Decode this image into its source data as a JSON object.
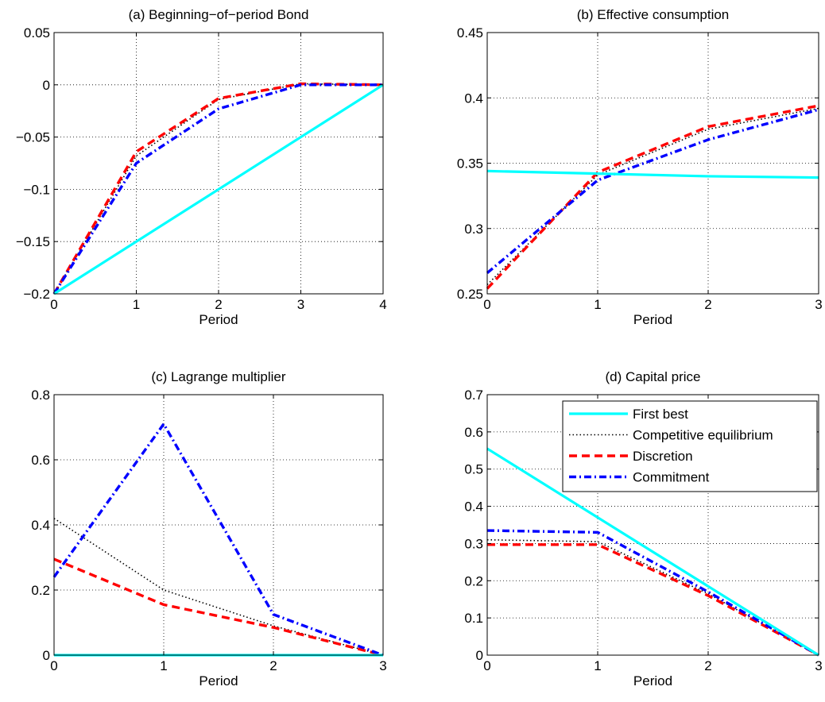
{
  "chart_data": [
    {
      "type": "line",
      "title": "(a) Beginning−of−period Bond",
      "xlabel": "Period",
      "ylabel": "",
      "xlim": [
        0,
        4
      ],
      "ylim": [
        -0.2,
        0.05
      ],
      "xticks": [
        "0",
        "1",
        "2",
        "3",
        "4"
      ],
      "yticks": [
        "−0.2",
        "−0.15",
        "−0.1",
        "−0.05",
        "0",
        "0.05"
      ],
      "xtick_values": [
        0,
        1,
        2,
        3,
        4
      ],
      "ytick_values": [
        -0.2,
        -0.15,
        -0.1,
        -0.05,
        0,
        0.05
      ],
      "grid": true,
      "series": [
        {
          "name": "First best",
          "x": [
            0,
            4
          ],
          "values": [
            -0.2,
            0.0
          ]
        },
        {
          "name": "Competitive equilibrium",
          "x": [
            0,
            1,
            2,
            3,
            4
          ],
          "values": [
            -0.2,
            -0.068,
            -0.014,
            0.001,
            0.0
          ]
        },
        {
          "name": "Discretion",
          "x": [
            0,
            1,
            2,
            3,
            4
          ],
          "values": [
            -0.2,
            -0.064,
            -0.013,
            0.001,
            0.0
          ]
        },
        {
          "name": "Commitment",
          "x": [
            0,
            1,
            2,
            3,
            4
          ],
          "values": [
            -0.2,
            -0.075,
            -0.023,
            0.0,
            0.0
          ]
        }
      ]
    },
    {
      "type": "line",
      "title": "(b) Effective consumption",
      "xlabel": "Period",
      "ylabel": "",
      "xlim": [
        0,
        3
      ],
      "ylim": [
        0.25,
        0.45
      ],
      "xticks": [
        "0",
        "1",
        "2",
        "3"
      ],
      "yticks": [
        "0.25",
        "0.3",
        "0.35",
        "0.4",
        "0.45"
      ],
      "xtick_values": [
        0,
        1,
        2,
        3
      ],
      "ytick_values": [
        0.25,
        0.3,
        0.35,
        0.4,
        0.45
      ],
      "grid": true,
      "series": [
        {
          "name": "First best",
          "x": [
            0,
            1,
            2,
            3
          ],
          "values": [
            0.344,
            0.342,
            0.34,
            0.339
          ]
        },
        {
          "name": "Competitive equilibrium",
          "x": [
            0,
            1,
            2,
            3
          ],
          "values": [
            0.257,
            0.341,
            0.376,
            0.392
          ]
        },
        {
          "name": "Discretion",
          "x": [
            0,
            1,
            2,
            3
          ],
          "values": [
            0.254,
            0.343,
            0.378,
            0.394
          ]
        },
        {
          "name": "Commitment",
          "x": [
            0,
            1,
            2,
            3
          ],
          "values": [
            0.266,
            0.337,
            0.368,
            0.391
          ]
        }
      ]
    },
    {
      "type": "line",
      "title": "(c) Lagrange multiplier",
      "xlabel": "Period",
      "ylabel": "",
      "xlim": [
        0,
        3
      ],
      "ylim": [
        0,
        0.8
      ],
      "xticks": [
        "0",
        "1",
        "2",
        "3"
      ],
      "yticks": [
        "0",
        "0.2",
        "0.4",
        "0.6",
        "0.8"
      ],
      "xtick_values": [
        0,
        1,
        2,
        3
      ],
      "ytick_values": [
        0,
        0.2,
        0.4,
        0.6,
        0.8
      ],
      "grid": true,
      "series": [
        {
          "name": "First best",
          "x": [
            0,
            1,
            2,
            3
          ],
          "values": [
            0.0,
            0.0,
            0.0,
            0.0
          ]
        },
        {
          "name": "Competitive equilibrium",
          "x": [
            0,
            1,
            2,
            3
          ],
          "values": [
            0.42,
            0.2,
            0.09,
            0.0
          ]
        },
        {
          "name": "Discretion",
          "x": [
            0,
            1,
            2,
            3
          ],
          "values": [
            0.295,
            0.155,
            0.085,
            0.0
          ]
        },
        {
          "name": "Commitment",
          "x": [
            0,
            1,
            2,
            3
          ],
          "values": [
            0.24,
            0.71,
            0.125,
            0.0
          ]
        }
      ]
    },
    {
      "type": "line",
      "title": "(d) Capital price",
      "xlabel": "Period",
      "ylabel": "",
      "xlim": [
        0,
        3
      ],
      "ylim": [
        0,
        0.7
      ],
      "xticks": [
        "0",
        "1",
        "2",
        "3"
      ],
      "yticks": [
        "0",
        "0.1",
        "0.2",
        "0.3",
        "0.4",
        "0.5",
        "0.6",
        "0.7"
      ],
      "xtick_values": [
        0,
        1,
        2,
        3
      ],
      "ytick_values": [
        0,
        0.1,
        0.2,
        0.3,
        0.4,
        0.5,
        0.6,
        0.7
      ],
      "grid": true,
      "legend": "top-right",
      "series": [
        {
          "name": "First best",
          "x": [
            0,
            1,
            2,
            3
          ],
          "values": [
            0.555,
            0.37,
            0.185,
            0.0
          ]
        },
        {
          "name": "Competitive equilibrium",
          "x": [
            0,
            1,
            2,
            3
          ],
          "values": [
            0.31,
            0.305,
            0.165,
            0.0
          ]
        },
        {
          "name": "Discretion",
          "x": [
            0,
            1,
            2,
            3
          ],
          "values": [
            0.297,
            0.297,
            0.16,
            0.0
          ]
        },
        {
          "name": "Commitment",
          "x": [
            0,
            1,
            2,
            3
          ],
          "values": [
            0.335,
            0.33,
            0.17,
            0.0
          ]
        }
      ]
    }
  ],
  "legend_entries": [
    "First best",
    "Competitive equilibrium",
    "Discretion",
    "Commitment"
  ],
  "series_styles": {
    "First best": {
      "color": "#00ffff",
      "dash": "solid"
    },
    "Competitive equilibrium": {
      "color": "#000000",
      "dash": "dotted"
    },
    "Discretion": {
      "color": "#ff0000",
      "dash": "dashed"
    },
    "Commitment": {
      "color": "#0000ff",
      "dash": "dashdot"
    }
  }
}
